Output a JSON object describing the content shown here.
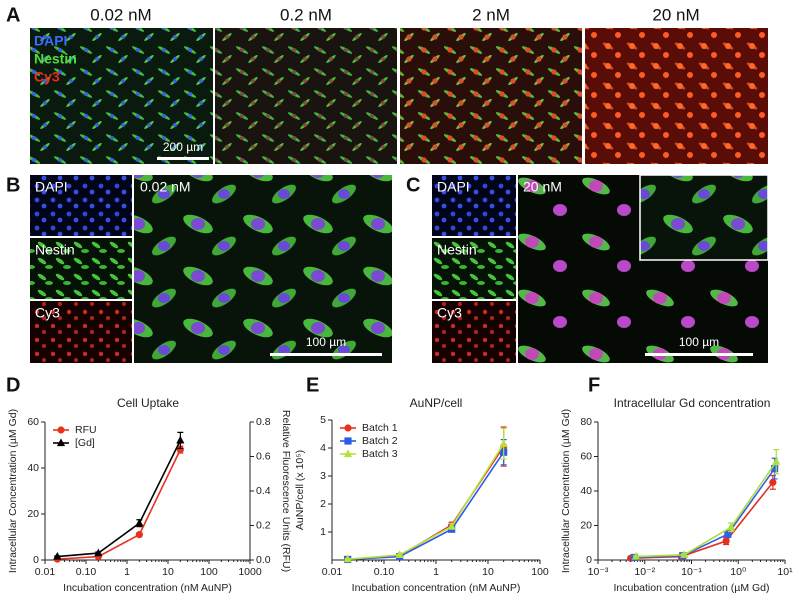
{
  "panels": {
    "A": {
      "letter": "A",
      "columns": [
        "0.02 nM",
        "0.2 nM",
        "2 nM",
        "20 nM"
      ],
      "channels": [
        "DAPI",
        "Nestin",
        "Cy3"
      ],
      "scale_bar": "200 µm"
    },
    "B": {
      "letter": "B",
      "channels": [
        "DAPI",
        "Nestin",
        "Cy3"
      ],
      "label": "0.02 nM",
      "scale_bar": "100 µm"
    },
    "C": {
      "letter": "C",
      "channels": [
        "DAPI",
        "Nestin",
        "Cy3"
      ],
      "label": "20 nM",
      "scale_bar": "100 µm"
    }
  },
  "chart_data": [
    {
      "type": "line",
      "panel_label": "D",
      "title": "Cell Uptake",
      "x_label": "Incubation concentration (nM AuNP)",
      "y_label": "Intracellular Concentration (µM Gd)",
      "y2_label": "Relative Fluorescence Units (RFU)",
      "y2_color": "#e8321e",
      "xlog": true,
      "xlim": [
        0.01,
        1000
      ],
      "xticks": [
        0.01,
        {
          "value": 0.1,
          "label": "0.10"
        },
        1,
        10,
        100,
        1000
      ],
      "ylim": [
        0,
        60
      ],
      "yticks": [
        0,
        20,
        40,
        60
      ],
      "y2lim": [
        0,
        0.8
      ],
      "y2ticks": [
        {
          "value": 0,
          "label": "0.0"
        },
        0.2,
        0.4,
        0.6,
        0.8
      ],
      "legend": "top-left",
      "x": [
        0.02,
        0.2,
        2,
        20
      ],
      "series": [
        {
          "name": "RFU",
          "color": "#e8321e",
          "marker": "circle",
          "axis": "y2",
          "values": [
            0.005,
            0.02,
            0.147,
            0.64
          ],
          "errors": [
            0.003,
            0.004,
            0.008,
            0.02
          ]
        },
        {
          "name": "[Gd]",
          "color": "#000000",
          "marker": "triangle",
          "values": [
            1.5,
            3,
            16,
            52
          ],
          "errors": [
            0.3,
            0.5,
            1.5,
            3.5
          ]
        }
      ]
    },
    {
      "type": "line",
      "panel_label": "E",
      "title": "AuNP/cell",
      "x_label": "Incubation concentration (nM AuNP)",
      "y_label": "AuNP/cell (x 10⁵)",
      "xlog": true,
      "xlim": [
        0.01,
        100
      ],
      "xticks": [
        0.01,
        {
          "value": 0.1,
          "label": "0.10"
        },
        1,
        10,
        100
      ],
      "ylim": [
        0,
        5
      ],
      "yticks": [
        1,
        2,
        3,
        4,
        5
      ],
      "legend": "top-left",
      "x": [
        0.02,
        0.2,
        2,
        20
      ],
      "series": [
        {
          "name": "Batch 1",
          "color": "#e8321e",
          "marker": "circle",
          "values": [
            0.02,
            0.15,
            1.25,
            4.05
          ],
          "errors": [
            0.02,
            0.03,
            0.1,
            0.7
          ]
        },
        {
          "name": "Batch 2",
          "color": "#2a5ce8",
          "marker": "square",
          "values": [
            0.02,
            0.12,
            1.1,
            3.85
          ],
          "errors": [
            0.02,
            0.03,
            0.08,
            0.45
          ]
        },
        {
          "name": "Batch 3",
          "color": "#b8e03a",
          "marker": "triangle",
          "values": [
            0.03,
            0.18,
            1.2,
            4.15
          ],
          "errors": [
            0.02,
            0.03,
            0.1,
            0.55
          ]
        }
      ]
    },
    {
      "type": "line",
      "panel_label": "F",
      "title": "Intracellular Gd concentration",
      "x_label": "Incubation concentration (µM Gd)",
      "y_label": "Intracellular Concentration (µM Gd)",
      "xlog": true,
      "xlim": [
        0.001,
        10
      ],
      "xticks": [
        {
          "value": 0.001,
          "label": "10⁻³"
        },
        {
          "value": 0.01,
          "label": "10⁻²"
        },
        {
          "value": 0.1,
          "label": "10⁻¹"
        },
        {
          "value": 1,
          "label": "10⁰"
        },
        {
          "value": 10,
          "label": "10¹"
        }
      ],
      "ylim": [
        0,
        80
      ],
      "yticks": [
        0,
        20,
        40,
        60,
        80
      ],
      "series": [
        {
          "color": "#e0301e",
          "marker": "circle",
          "x": [
            0.005,
            0.06,
            0.55,
            5.5
          ],
          "values": [
            1,
            2,
            11,
            45
          ],
          "errors": [
            0.5,
            0.8,
            2,
            4
          ]
        },
        {
          "color": "#3a5ee0",
          "marker": "square",
          "x": [
            0.006,
            0.065,
            0.6,
            6
          ],
          "values": [
            1.5,
            2.5,
            15,
            53
          ],
          "errors": [
            0.5,
            0.8,
            2,
            6
          ]
        },
        {
          "color": "#a8e040",
          "marker": "triangle",
          "x": [
            0.0065,
            0.07,
            0.7,
            6.5
          ],
          "values": [
            2,
            3,
            19,
            57
          ],
          "errors": [
            0.5,
            0.8,
            2.5,
            7
          ]
        }
      ]
    }
  ]
}
